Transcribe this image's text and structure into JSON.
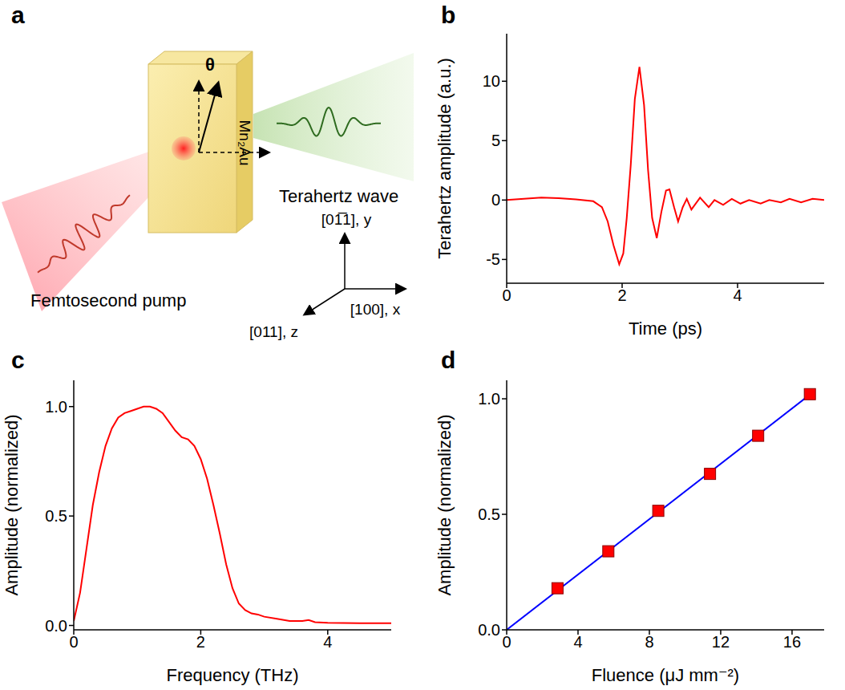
{
  "chart_data": [
    {
      "type": "diagram",
      "panel": "a",
      "sample": "Mn₂Au",
      "angle_label": "θ",
      "pump_label": "Femtosecond pump",
      "emission_label": "Terahertz wave",
      "axes": [
        "[01̅1], y",
        "[011], z",
        "[100], x"
      ]
    },
    {
      "type": "line",
      "panel": "b",
      "x_label": "Time (ps)",
      "y_label": "Terahertz amplitude (a.u.)",
      "color": "#ff0000",
      "x": [
        0,
        0.3,
        0.6,
        0.9,
        1.2,
        1.5,
        1.65,
        1.75,
        1.85,
        1.95,
        2.02,
        2.08,
        2.15,
        2.22,
        2.3,
        2.38,
        2.45,
        2.52,
        2.6,
        2.68,
        2.76,
        2.82,
        2.9,
        2.97,
        3.05,
        3.12,
        3.2,
        3.35,
        3.5,
        3.6,
        3.75,
        3.9,
        4.05,
        4.2,
        4.4,
        4.55,
        4.75,
        4.9,
        5.1,
        5.3,
        5.5
      ],
      "values": [
        0,
        0.1,
        0.2,
        0.15,
        0.05,
        -0.1,
        -0.6,
        -1.8,
        -3.8,
        -5.4,
        -4.5,
        -1.5,
        3,
        8.5,
        11.2,
        8,
        2.5,
        -1.5,
        -3.2,
        -1,
        0.8,
        0.9,
        -0.6,
        -1.8,
        -0.6,
        0.1,
        -0.8,
        0.2,
        -0.6,
        0,
        -0.4,
        0.1,
        -0.3,
        0,
        -0.3,
        0,
        -0.2,
        0.1,
        -0.2,
        0.1,
        0
      ],
      "xlim": [
        0,
        5.5
      ],
      "xticks": [
        0,
        2,
        4
      ],
      "ylim": [
        -7,
        14
      ],
      "yticks": [
        -5,
        0,
        5,
        10
      ]
    },
    {
      "type": "line",
      "panel": "c",
      "x_label": "Frequency (THz)",
      "y_label": "Amplitude (normalized)",
      "color": "#ff0000",
      "x": [
        0,
        0.1,
        0.2,
        0.3,
        0.4,
        0.5,
        0.6,
        0.7,
        0.8,
        0.9,
        1.0,
        1.1,
        1.2,
        1.3,
        1.4,
        1.5,
        1.6,
        1.7,
        1.8,
        1.9,
        2.0,
        2.1,
        2.2,
        2.3,
        2.4,
        2.5,
        2.6,
        2.7,
        2.8,
        2.9,
        3.0,
        3.2,
        3.4,
        3.6,
        3.7,
        3.8,
        4.0,
        4.5,
        5.0
      ],
      "values": [
        0.02,
        0.15,
        0.35,
        0.55,
        0.7,
        0.82,
        0.9,
        0.95,
        0.97,
        0.98,
        0.99,
        1.0,
        1.0,
        0.99,
        0.97,
        0.93,
        0.89,
        0.86,
        0.85,
        0.82,
        0.76,
        0.67,
        0.55,
        0.42,
        0.28,
        0.17,
        0.1,
        0.07,
        0.055,
        0.05,
        0.04,
        0.03,
        0.02,
        0.02,
        0.025,
        0.015,
        0.012,
        0.01,
        0.01
      ],
      "xlim": [
        0,
        5
      ],
      "xticks": [
        0,
        2,
        4
      ],
      "ylim": [
        -0.02,
        1.12
      ],
      "yticks": [
        {
          "value": 0,
          "label": "0.0"
        },
        {
          "value": 0.5,
          "label": "0.5"
        },
        {
          "value": 1,
          "label": "1.0"
        }
      ]
    },
    {
      "type": "scatter",
      "panel": "d",
      "x_label": "Fluence (μJ mm⁻²)",
      "y_label": "Amplitude (normalized)",
      "series": [
        {
          "type": "scatter",
          "marker": "square",
          "color": "#ff0000",
          "x": [
            2.85,
            5.7,
            8.5,
            11.4,
            14.1,
            17.0
          ],
          "values": [
            0.18,
            0.34,
            0.515,
            0.675,
            0.84,
            1.02
          ]
        },
        {
          "type": "line",
          "color": "#0000ff",
          "x": [
            0,
            17.2
          ],
          "values": [
            0,
            1.03
          ]
        }
      ],
      "xlim": [
        0,
        17.8
      ],
      "xticks": [
        0,
        4,
        8,
        12,
        16
      ],
      "ylim": [
        0,
        1.08
      ],
      "yticks": [
        {
          "value": 0,
          "label": "0.0"
        },
        {
          "value": 0.5,
          "label": "0.5"
        },
        {
          "value": 1,
          "label": "1.0"
        }
      ]
    }
  ]
}
